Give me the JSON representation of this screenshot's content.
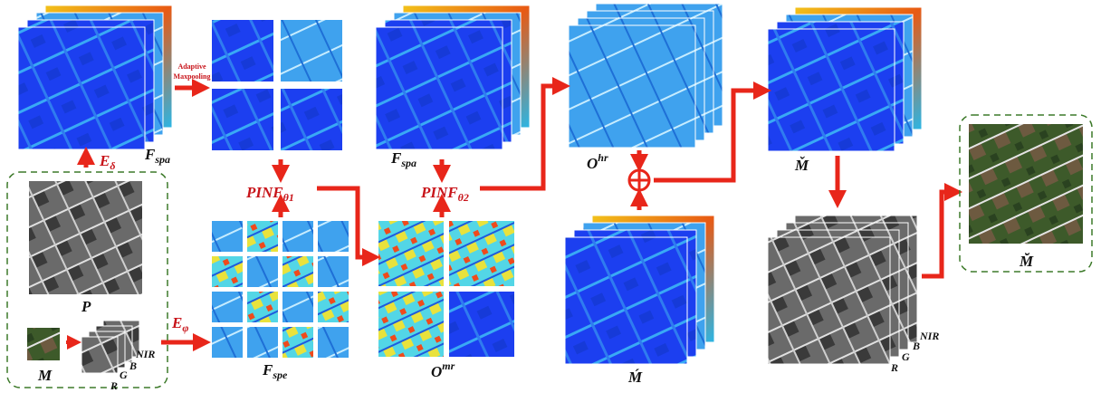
{
  "labels": {
    "adaptive": "Adaptive",
    "maxpooling": "Maxpooling",
    "f_spa_top": {
      "base": "F",
      "sub": "spa"
    },
    "f_spa_mid": {
      "base": "F",
      "sub": "spa"
    },
    "e_delta": {
      "base": "E",
      "sub": "δ"
    },
    "e_phi": {
      "base": "E",
      "sub": "φ"
    },
    "p": "P",
    "m": "M",
    "bands_left": [
      "NIR",
      "B",
      "G",
      "R"
    ],
    "bands_right": [
      "NIR",
      "B",
      "G",
      "R"
    ],
    "pinf1": {
      "base": "PINF",
      "sub": "θ1"
    },
    "pinf2": {
      "base": "PINF",
      "sub": "θ2"
    },
    "f_spe": {
      "base": "F",
      "sub": "spe"
    },
    "o_mr": {
      "base": "O",
      "sup": "mr"
    },
    "o_hr": {
      "base": "O",
      "sup": "hr"
    },
    "m_check": "M̌",
    "m_acute": "Ḿ",
    "m_breve": "M̆"
  }
}
